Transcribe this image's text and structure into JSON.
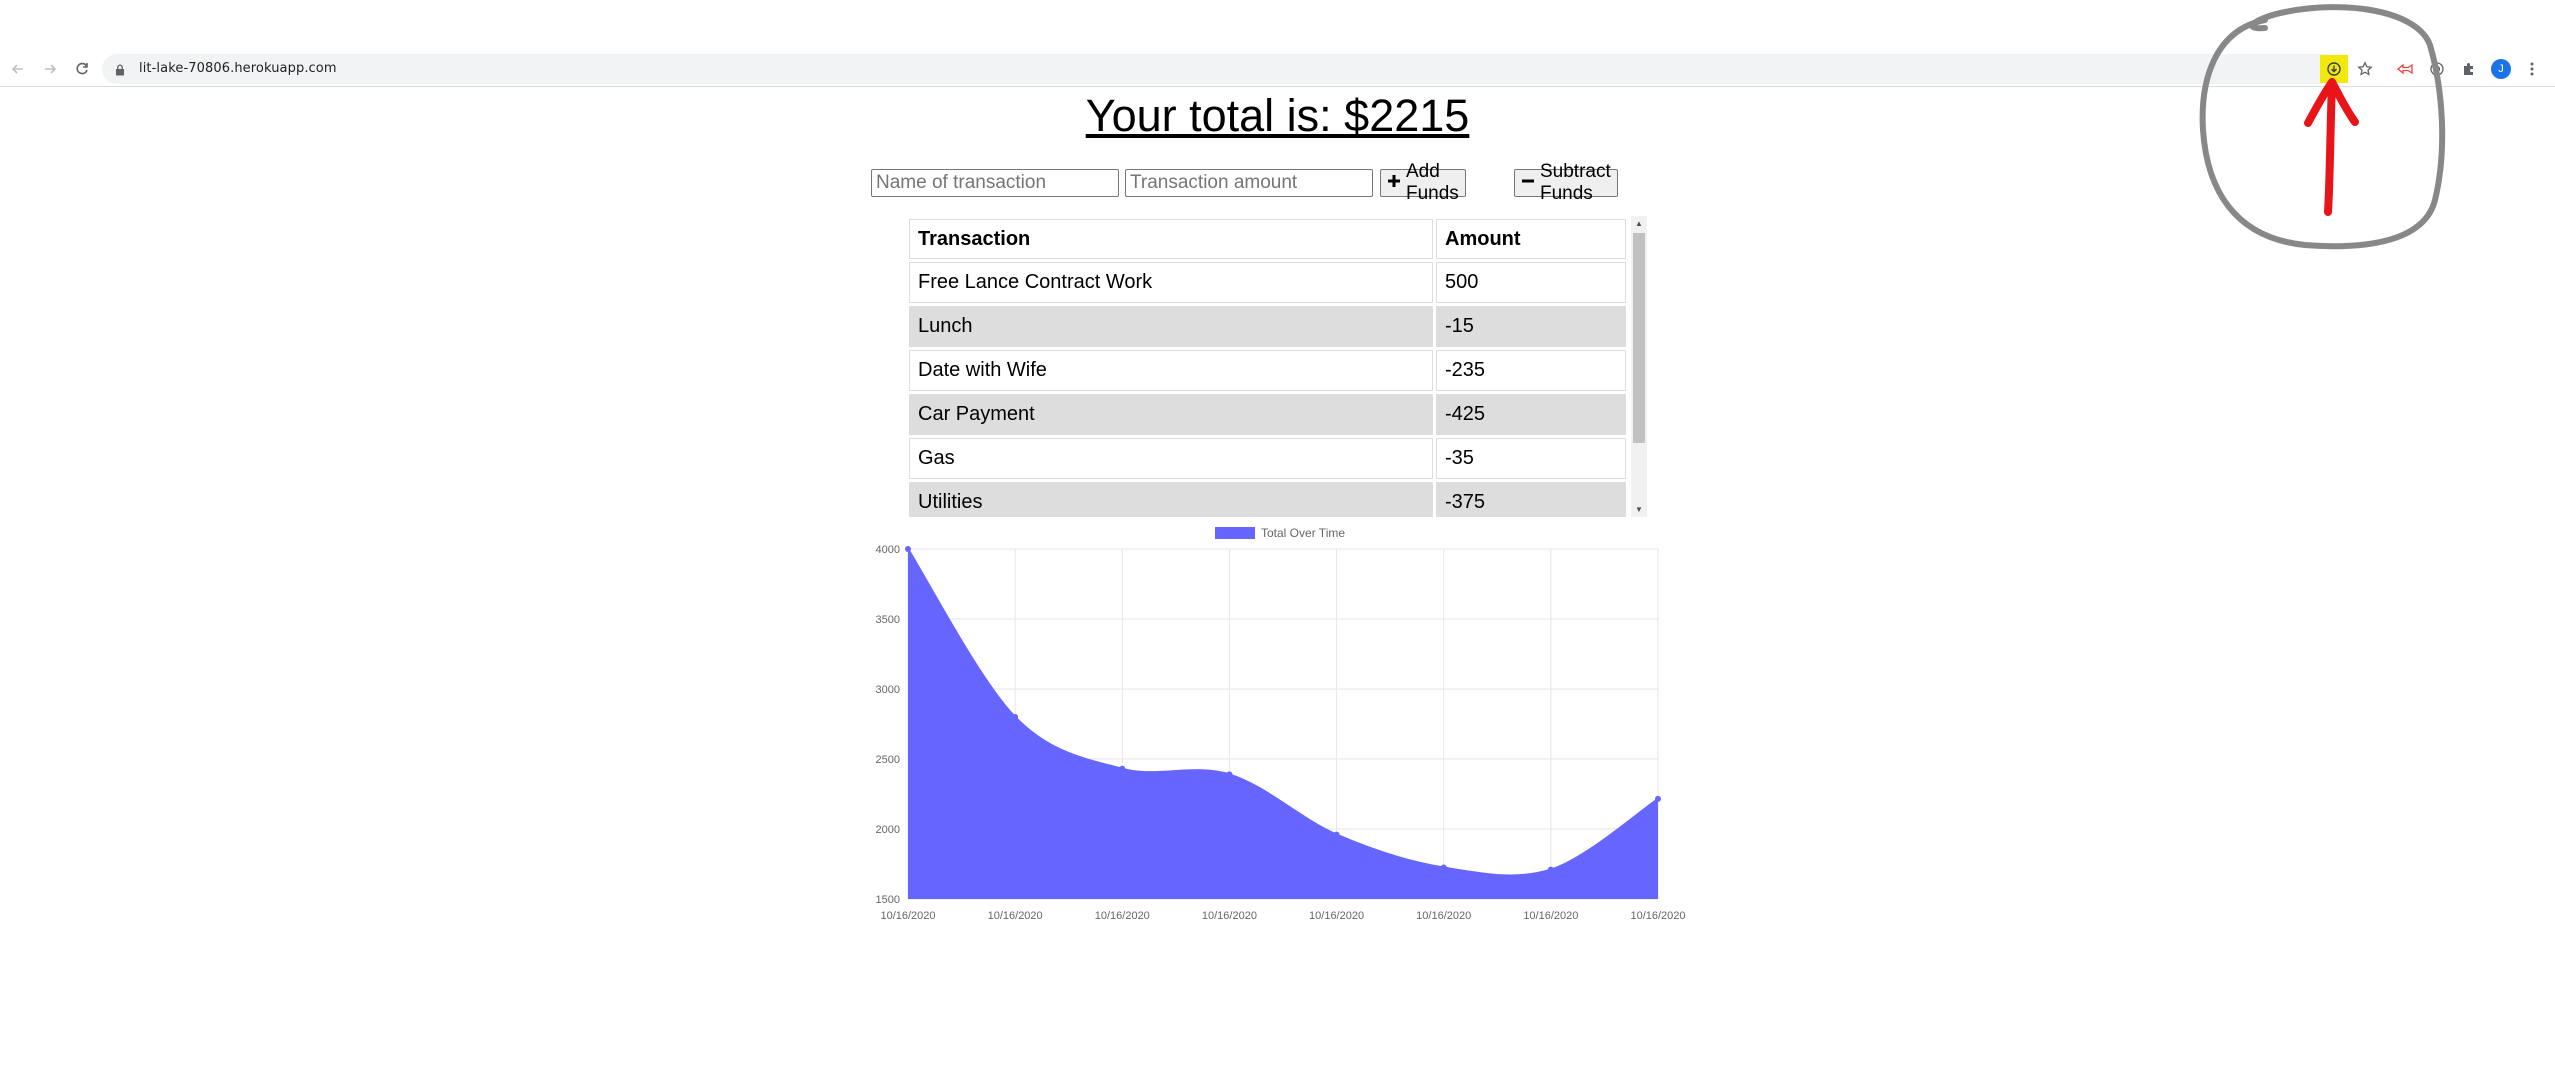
{
  "browser": {
    "url": "lit-lake-70806.herokuapp.com",
    "profile_initial": "J",
    "icons": {
      "back": "arrow-left-icon",
      "forward": "arrow-right-icon",
      "reload": "reload-icon",
      "lock": "lock-icon",
      "install": "install-app-icon",
      "bookmark": "star-icon",
      "extensions": "puzzle-icon",
      "menu": "vertical-dots-icon"
    },
    "highlight_color": "#f2e80b"
  },
  "page": {
    "total_text": "Your total is: $2215",
    "name_placeholder": "Name of transaction",
    "amount_placeholder": "Transaction amount",
    "add_label": "Add Funds",
    "subtract_label": "Subtract Funds"
  },
  "table": {
    "headers": [
      "Transaction",
      "Amount"
    ],
    "rows": [
      {
        "name": "Free Lance Contract Work",
        "amount": "500"
      },
      {
        "name": "Lunch",
        "amount": "-15"
      },
      {
        "name": "Date with Wife",
        "amount": "-235"
      },
      {
        "name": "Car Payment",
        "amount": "-425"
      },
      {
        "name": "Gas",
        "amount": "-35"
      },
      {
        "name": "Utilities",
        "amount": "-375"
      }
    ]
  },
  "chart_data": {
    "type": "area",
    "title": "",
    "xlabel": "",
    "ylabel": "",
    "legend_position": "top",
    "grid": true,
    "color": "#6666ff",
    "x": [
      "10/16/2020",
      "10/16/2020",
      "10/16/2020",
      "10/16/2020",
      "10/16/2020",
      "10/16/2020",
      "10/16/2020",
      "10/16/2020"
    ],
    "series": [
      {
        "name": "Total Over Time",
        "values": [
          4000,
          2800,
          2430,
          2390,
          1960,
          1725,
          1710,
          2215
        ]
      }
    ],
    "ylim": [
      1500,
      4000
    ],
    "yticks": [
      4000,
      3500,
      3000,
      2500,
      2000,
      1500
    ]
  },
  "annotation": {
    "circle_color": "#888888",
    "arrow_color": "#e8141a"
  }
}
